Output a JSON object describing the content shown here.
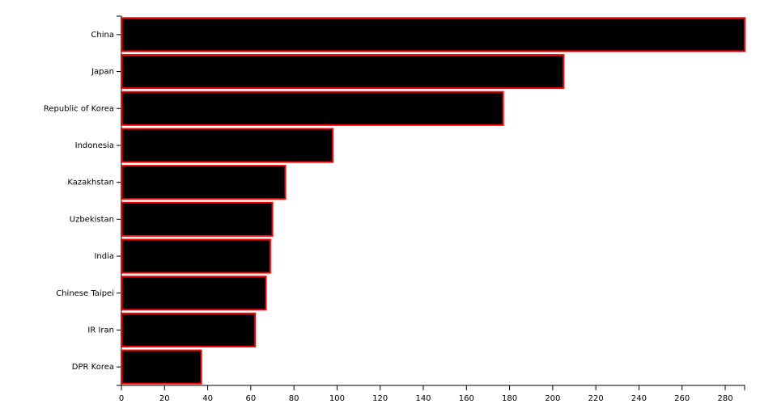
{
  "chart_data": {
    "type": "barh",
    "categories": [
      "China",
      "Japan",
      "Republic of Korea",
      "Indonesia",
      "Kazakhstan",
      "Uzbekistan",
      "India",
      "Chinese Taipei",
      "IR Iran",
      "DPR Korea"
    ],
    "values": [
      289,
      205,
      177,
      98,
      76,
      70,
      69,
      67,
      62,
      37
    ],
    "color": "#000000",
    "edgecolor": "#ff0000",
    "xlim": [
      0,
      289
    ],
    "xticks": [
      0,
      20,
      40,
      60,
      80,
      100,
      120,
      140,
      160,
      180,
      200,
      220,
      240,
      260,
      280
    ]
  }
}
